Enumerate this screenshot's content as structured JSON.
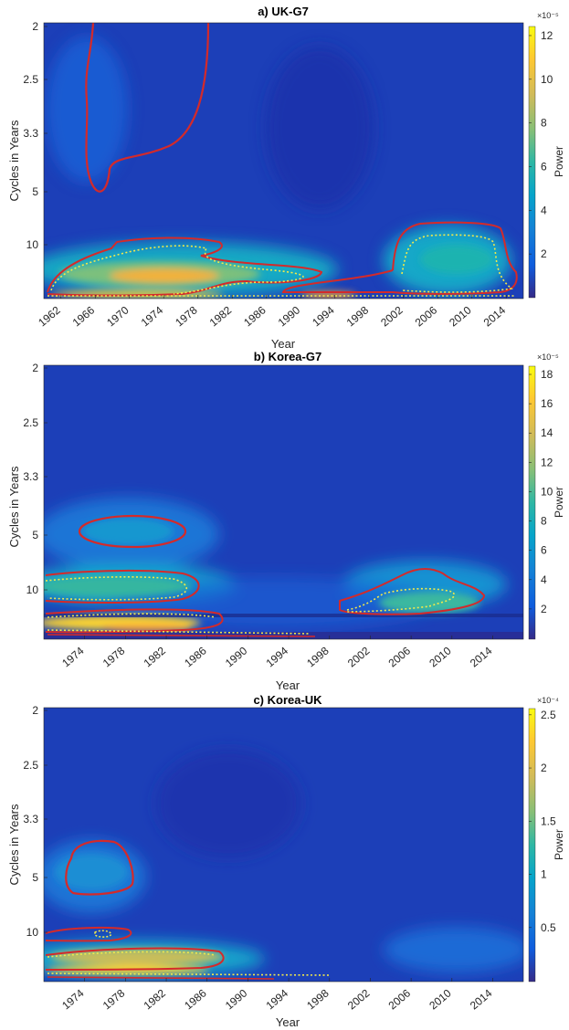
{
  "chart_data": [
    {
      "type": "heatmap",
      "title": "a) UK-G7",
      "xlabel": "Year",
      "ylabel": "Cycles in Years",
      "x_ticks": [
        "1962",
        "1966",
        "1970",
        "1974",
        "1978",
        "1982",
        "1986",
        "1990",
        "1994",
        "1998",
        "2002",
        "2006",
        "2010",
        "2014"
      ],
      "x_range": [
        1960,
        2016
      ],
      "y_ticks": [
        "2",
        "2.5",
        "3.3",
        "5",
        "10"
      ],
      "colorbar": {
        "label": "Power",
        "exponent": "×10⁻⁵",
        "ticks": [
          "2",
          "4",
          "6",
          "8",
          "10",
          "12"
        ],
        "min": 0,
        "max": 12.5
      },
      "colormap": "parula",
      "contours": "red solid = significant coherence region; dotted yellow/red = cone of influence",
      "hotspots": [
        {
          "year": 1975,
          "period": 14,
          "power": 11.5
        },
        {
          "year": 2008,
          "period": 11,
          "power": 6
        },
        {
          "year": 1968,
          "period": 3,
          "power": 4
        }
      ]
    },
    {
      "type": "heatmap",
      "title": "b) Korea-G7",
      "xlabel": "Year",
      "ylabel": "Cycles in Years",
      "x_ticks": [
        "1974",
        "1978",
        "1982",
        "1986",
        "1990",
        "1994",
        "1998",
        "2002",
        "2006",
        "2010",
        "2014"
      ],
      "x_range": [
        1970,
        2017
      ],
      "y_ticks": [
        "2",
        "2.5",
        "3.3",
        "5",
        "10"
      ],
      "colorbar": {
        "label": "Power",
        "exponent": "×10⁻⁵",
        "ticks": [
          "2",
          "4",
          "6",
          "8",
          "10",
          "12",
          "14",
          "16",
          "18"
        ],
        "min": 0,
        "max": 18.5
      },
      "colormap": "parula",
      "hotspots": [
        {
          "year": 1978,
          "period": 15,
          "power": 17
        },
        {
          "year": 1977,
          "period": 10,
          "power": 7
        },
        {
          "year": 1978,
          "period": 5,
          "power": 5
        },
        {
          "year": 2005,
          "period": 12,
          "power": 6
        }
      ]
    },
    {
      "type": "heatmap",
      "title": "c) Korea-UK",
      "xlabel": "Year",
      "ylabel": "Cycles in Years",
      "x_ticks": [
        "1974",
        "1978",
        "1982",
        "1986",
        "1990",
        "1994",
        "1998",
        "2002",
        "2006",
        "2010",
        "2014"
      ],
      "x_range": [
        1970,
        2017
      ],
      "y_ticks": [
        "2",
        "2.5",
        "3.3",
        "5",
        "10"
      ],
      "colorbar": {
        "label": "Power",
        "exponent": "×10⁻⁴",
        "ticks": [
          "0.5",
          "1",
          "1.5",
          "2",
          "2.5"
        ],
        "min": 0,
        "max": 2.55
      },
      "colormap": "parula",
      "hotspots": [
        {
          "year": 1980,
          "period": 14,
          "power": 2.3
        },
        {
          "year": 1976,
          "period": 5,
          "power": 0.6
        },
        {
          "year": 1976,
          "period": 10,
          "power": 0.6
        }
      ]
    }
  ]
}
